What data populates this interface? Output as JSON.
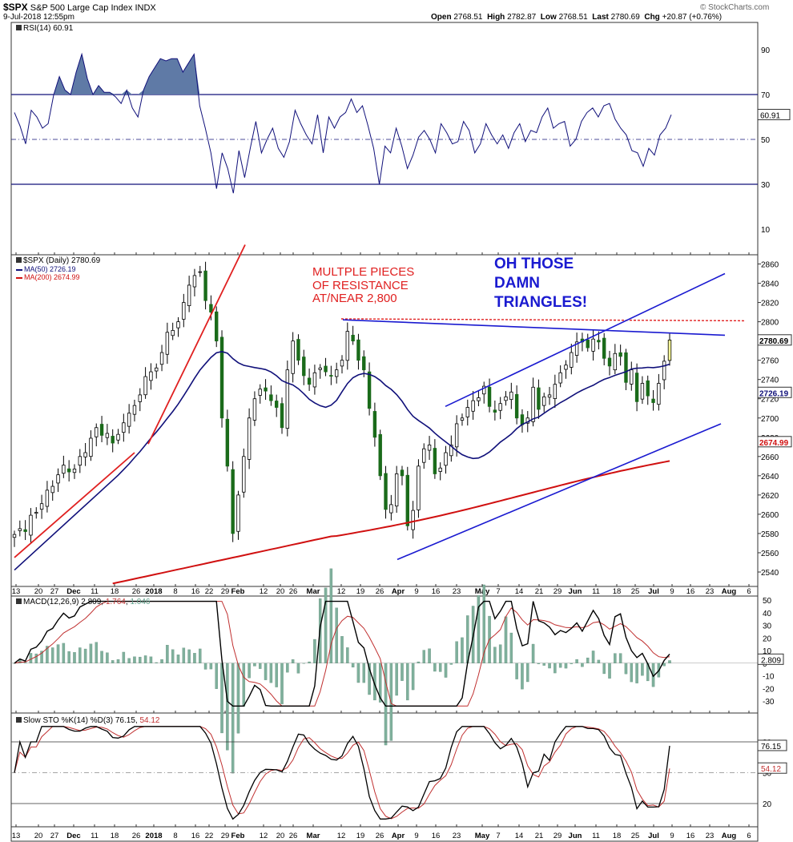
{
  "header": {
    "symbol": "$SPX",
    "name": "S&P 500 Large Cap Index",
    "exchange": "INDX",
    "date": "9-Jul-2018 12:55pm",
    "open_label": "Open",
    "open": "2768.51",
    "high_label": "High",
    "high": "2782.87",
    "low_label": "Low",
    "low": "2768.51",
    "last_label": "Last",
    "last": "2780.69",
    "chg_label": "Chg",
    "chg": "+20.87 (+0.76%)",
    "credit": "© StockCharts.com"
  },
  "panels": {
    "rsi": {
      "legend": "RSI(14) 60.91",
      "value_tag": "60.91",
      "levels": [
        "90",
        "70",
        "50",
        "30",
        "10"
      ]
    },
    "price": {
      "legend_main": "$SPX (Daily) 2780.69",
      "legend_ma50": "MA(50) 2726.19",
      "legend_ma200": "MA(200) 2674.99",
      "last_tag": "2780.69",
      "ma50_tag": "2726.19",
      "ma200_tag": "2674.99",
      "y_ticks": [
        "2860",
        "2840",
        "2820",
        "2800",
        "2780",
        "2760",
        "2740",
        "2720",
        "2700",
        "2680",
        "2660",
        "2640",
        "2620",
        "2600",
        "2580",
        "2560",
        "2540"
      ],
      "annotation_red": [
        "MULTPLE PIECES",
        "OF RESISTANCE",
        "AT/NEAR 2,800"
      ],
      "annotation_blue": [
        "OH THOSE",
        "DAMN",
        "TRIANGLES!"
      ]
    },
    "macd": {
      "legend_prefix": "MACD(12,26,9)",
      "legend_v1": "2.809",
      "legend_v2": "1.764",
      "legend_v3": "1.046",
      "value_tag": "2.809",
      "y_ticks": [
        "50",
        "40",
        "30",
        "20",
        "10",
        "0",
        "-10",
        "-20",
        "-30"
      ]
    },
    "sto": {
      "legend_prefix": "Slow STO %K(14) %D(3)",
      "legend_v1": "76.15",
      "legend_v2": "54.12",
      "k_tag": "76.15",
      "d_tag": "54.12",
      "y_ticks": [
        "80",
        "50",
        "20"
      ]
    }
  },
  "x_axis_labels": [
    "13",
    "20",
    "27",
    "Dec",
    "11",
    "18",
    "26",
    "2018",
    "8",
    "16",
    "22",
    "29",
    "Feb",
    "12",
    "20",
    "26",
    "Mar",
    "12",
    "19",
    "26",
    "Apr",
    "9",
    "16",
    "23",
    "May",
    "7",
    "14",
    "21",
    "29",
    "Jun",
    "11",
    "18",
    "25",
    "Jul",
    "9",
    "16",
    "23",
    "Aug",
    "6"
  ],
  "colors": {
    "price_up": "#1a6b1a",
    "ma50": "#10107a",
    "ma200": "#d01010",
    "trend_red": "#e02020",
    "triangle_blue": "#1a1ad0",
    "rsi_fill": "#5f7aa6",
    "macd_hist": "#7fb09c",
    "sto_d": "#c03030",
    "last_tag": "#ffff99"
  },
  "chart_data": [
    {
      "type": "line",
      "title": "RSI(14)",
      "ylim": [
        0,
        100
      ],
      "reference_lines": [
        70,
        50,
        30
      ],
      "y": [
        62,
        56,
        48,
        63,
        60,
        55,
        57,
        70,
        78,
        72,
        70,
        80,
        88,
        77,
        70,
        74,
        71,
        71,
        69,
        66,
        72,
        64,
        60,
        72,
        78,
        82,
        86,
        85,
        86,
        86,
        80,
        84,
        88,
        65,
        55,
        44,
        28,
        44,
        37,
        26,
        45,
        33,
        46,
        58,
        44,
        50,
        55,
        46,
        42,
        49,
        63,
        57,
        52,
        48,
        61,
        44,
        60,
        55,
        60,
        62,
        68,
        62,
        65,
        56,
        46,
        30,
        47,
        44,
        55,
        47,
        37,
        43,
        51,
        54,
        50,
        44,
        57,
        53,
        48,
        49,
        58,
        54,
        44,
        48,
        57,
        52,
        48,
        52,
        46,
        53,
        57,
        49,
        54,
        53,
        60,
        64,
        55,
        57,
        58,
        47,
        50,
        58,
        62,
        64,
        60,
        65,
        66,
        59,
        55,
        52,
        45,
        44,
        38,
        46,
        43,
        52,
        55,
        61
      ],
      "value": 60.91
    },
    {
      "type": "candlestick",
      "title": "$SPX (Daily) 2780.69",
      "ylim": [
        2532,
        2870
      ],
      "x_start": "2017-11-13",
      "close": [
        2579,
        2585,
        2582,
        2599,
        2602,
        2611,
        2625,
        2629,
        2641,
        2651,
        2644,
        2647,
        2660,
        2664,
        2679,
        2690,
        2682,
        2684,
        2674,
        2683,
        2695,
        2705,
        2713,
        2724,
        2743,
        2748,
        2752,
        2768,
        2789,
        2791,
        2800,
        2820,
        2838,
        2848,
        2852,
        2822,
        2810,
        2780,
        2700,
        2650,
        2580,
        2620,
        2660,
        2700,
        2720,
        2730,
        2728,
        2718,
        2711,
        2690,
        2750,
        2780,
        2760,
        2744,
        2735,
        2747,
        2752,
        2748,
        2744,
        2750,
        2760,
        2790,
        2780,
        2760,
        2750,
        2710,
        2680,
        2640,
        2605,
        2610,
        2642,
        2640,
        2588,
        2604,
        2650,
        2668,
        2672,
        2642,
        2648,
        2664,
        2672,
        2694,
        2700,
        2711,
        2718,
        2721,
        2733,
        2712,
        2706,
        2715,
        2722,
        2727,
        2700,
        2693,
        2700,
        2732,
        2709,
        2722,
        2724,
        2735,
        2747,
        2755,
        2768,
        2779,
        2779,
        2773,
        2782,
        2779,
        2762,
        2754,
        2767,
        2764,
        2737,
        2750,
        2717,
        2736,
        2723,
        2716,
        2736,
        2759,
        2781
      ],
      "last": 2780.69,
      "ma50_last": 2726.19,
      "ma200_last": 2674.99
    },
    {
      "type": "line",
      "title": "MACD(12,26,9)",
      "ylim": [
        -35,
        52
      ],
      "series": [
        {
          "name": "MACD",
          "last": 2.809
        },
        {
          "name": "Signal",
          "last": 1.764
        },
        {
          "name": "Histogram",
          "last": 1.046
        }
      ]
    },
    {
      "type": "line",
      "title": "Slow STO %K(14) %D(3)",
      "ylim": [
        0,
        100
      ],
      "reference_lines": [
        80,
        50,
        20
      ],
      "series": [
        {
          "name": "%K",
          "last": 76.15
        },
        {
          "name": "%D",
          "last": 54.12
        }
      ]
    }
  ]
}
